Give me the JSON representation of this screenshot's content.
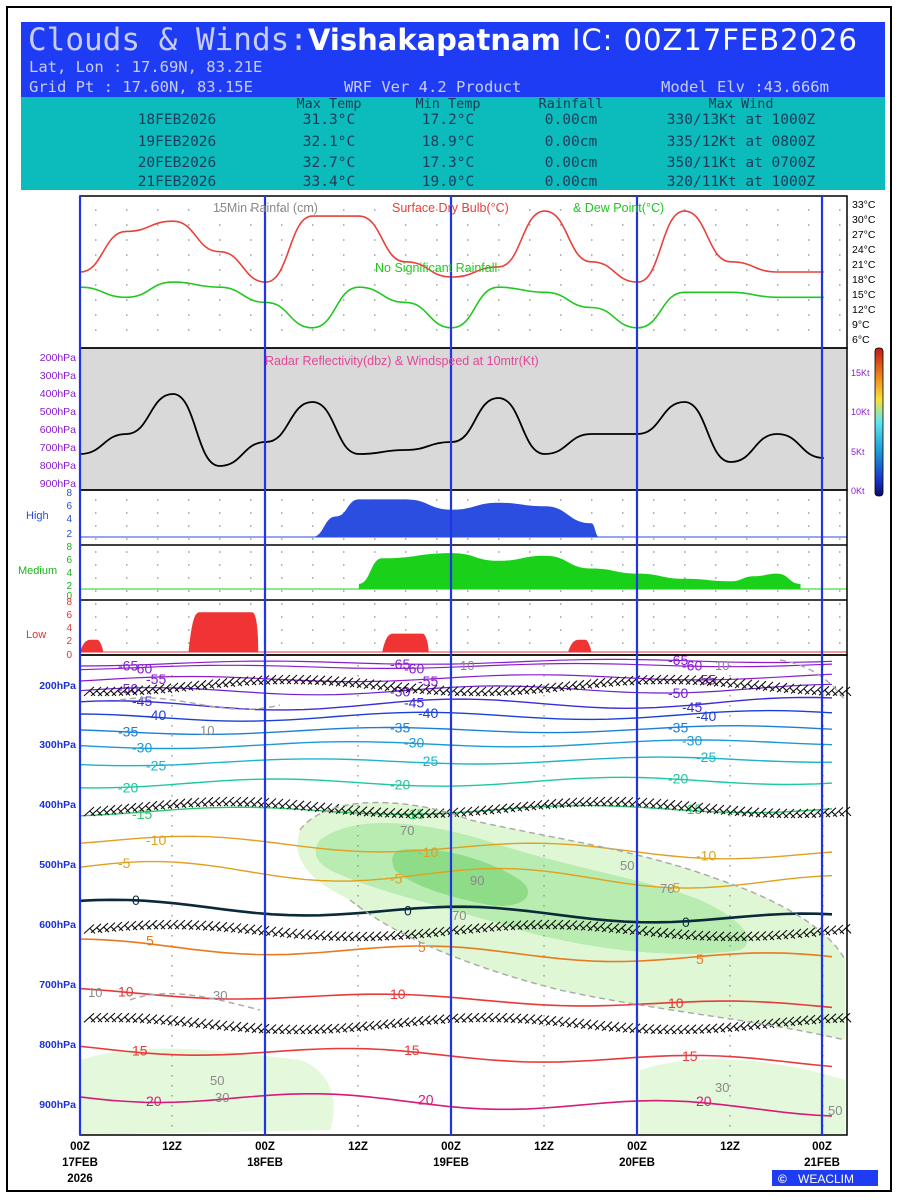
{
  "header": {
    "title_prefix": "Clouds & Winds:",
    "city": "Vishakapatnam",
    "ic": "IC: 00Z17FEB2026",
    "latlon": "Lat, Lon : 17.69N, 83.21E",
    "gridpt": "Grid Pt  : 17.60N, 83.15E",
    "product": "WRF Ver 4.2 Product",
    "elevation": "Model Elv :43.666m"
  },
  "summary": {
    "headers": [
      "Max Temp",
      "Min Temp",
      "Rainfall",
      "Max Wind"
    ],
    "rows": [
      {
        "date": "18FEB2026",
        "max": "31.3°C",
        "min": "17.2°C",
        "rain": "0.00cm",
        "wind": "330/13Kt at 1000Z"
      },
      {
        "date": "19FEB2026",
        "max": "32.1°C",
        "min": "18.9°C",
        "rain": "0.00cm",
        "wind": "335/12Kt at 0800Z"
      },
      {
        "date": "20FEB2026",
        "max": "32.7°C",
        "min": "17.3°C",
        "rain": "0.00cm",
        "wind": "350/11Kt at 0700Z"
      },
      {
        "date": "21FEB2026",
        "max": "33.4°C",
        "min": "19.0°C",
        "rain": "0.00cm",
        "wind": "320/11Kt at 1000Z"
      }
    ]
  },
  "chart_data": [
    {
      "type": "line",
      "title": "15Min Rainfal (cm)   Surface Dry Bulb(°C)  & Dew Point(°C)",
      "legend": [
        "15Min Rainfal (cm)",
        "Surface Dry Bulb(°C)",
        "& Dew Point(°C)"
      ],
      "annotation": "No Significant Rainfall",
      "x_hours": [
        0,
        6,
        12,
        18,
        24,
        30,
        36,
        42,
        48,
        54,
        60,
        66,
        72,
        78,
        84,
        90,
        96
      ],
      "ylim": [
        6,
        33
      ],
      "ytick_labels": [
        "33°C",
        "30°C",
        "27°C",
        "24°C",
        "21°C",
        "18°C",
        "15°C",
        "12°C",
        "9°C",
        "6°C"
      ],
      "series": [
        {
          "name": "Surface Dry Bulb",
          "color": "#e8413a",
          "values": [
            20,
            28,
            30,
            24,
            18,
            31,
            31,
            22,
            19,
            21,
            32,
            22,
            18,
            32,
            22,
            20,
            20
          ]
        },
        {
          "name": "Dew Point",
          "color": "#1fc81f",
          "values": [
            17,
            15,
            18,
            17,
            14,
            9,
            17,
            14,
            9,
            17,
            16,
            13,
            9,
            16,
            16,
            15,
            15
          ]
        }
      ]
    },
    {
      "type": "line",
      "title": "Radar Reflectivity(dbz) & Windspeed at 10mtr(Kt)",
      "left_tick_labels": [
        "200hPa",
        "300hPa",
        "400hPa",
        "500hPa",
        "600hPa",
        "700hPa",
        "800hPa",
        "900hPa"
      ],
      "right_tick_labels": [
        "15Kt",
        "10Kt",
        "5Kt",
        "0Kt"
      ],
      "ylim": [
        0,
        17
      ],
      "x_hours": [
        0,
        6,
        12,
        18,
        24,
        30,
        36,
        42,
        48,
        54,
        60,
        66,
        72,
        78,
        84,
        90,
        96
      ],
      "series": [
        {
          "name": "Windspeed",
          "color": "#000000",
          "values": [
            4.5,
            7,
            12,
            3,
            6,
            11,
            4.5,
            5,
            6,
            11.5,
            4.5,
            7,
            7,
            11,
            3.5,
            7,
            4
          ]
        }
      ]
    },
    {
      "type": "area",
      "title": "High",
      "ylabel": "High",
      "ytick_labels": [
        "8",
        "6",
        "4",
        "2"
      ],
      "ylim": [
        2,
        8
      ],
      "color": "#2b4de0",
      "x_hours": [
        30,
        33,
        36,
        42,
        48,
        54,
        60,
        66,
        67
      ],
      "values": [
        2,
        5,
        7.5,
        7.5,
        6,
        7,
        6.5,
        4,
        2
      ]
    },
    {
      "type": "area",
      "title": "Medium",
      "ylabel": "Medium",
      "ytick_labels": [
        "8",
        "6",
        "4",
        "2",
        "0"
      ],
      "ylim": [
        0,
        8
      ],
      "color": "#1ad11a",
      "x_hours": [
        36,
        39,
        48,
        54,
        60,
        66,
        72,
        78,
        84,
        87,
        90,
        93
      ],
      "values": [
        1,
        6,
        7,
        5.5,
        6.5,
        4,
        3,
        2,
        1.5,
        2.5,
        3,
        1
      ]
    },
    {
      "type": "area",
      "title": "Low",
      "ylabel": "Low",
      "ytick_labels": [
        "8",
        "6",
        "4",
        "2",
        "0"
      ],
      "ylim": [
        0,
        8
      ],
      "color": "#f03434",
      "blocks": [
        {
          "x": [
            0,
            3
          ],
          "value": 2
        },
        {
          "x": [
            14,
            23
          ],
          "value": 6.5
        },
        {
          "x": [
            39,
            45
          ],
          "value": 3
        },
        {
          "x": [
            63,
            66
          ],
          "value": 2
        }
      ]
    },
    {
      "type": "contour",
      "title": "Temperature (°C) & Relative Humidity (%) cross-section with wind barbs",
      "pressure_labels": [
        "200hPa",
        "300hPa",
        "400hPa",
        "500hPa",
        "600hPa",
        "700hPa",
        "800hPa",
        "900hPa"
      ],
      "isotherms": [
        "-65",
        "-60",
        "-55",
        "-50",
        "-45",
        "-40",
        "-35",
        "-30",
        "-25",
        "-20",
        "-15",
        "-10",
        "-5",
        "0",
        "5",
        "10",
        "15",
        "20"
      ],
      "humidity_labels": [
        "10",
        "30",
        "50",
        "70",
        "90"
      ],
      "x_tick_labels": [
        "00Z",
        "12Z",
        "00Z",
        "12Z",
        "00Z",
        "12Z",
        "00Z",
        "12Z",
        "00Z"
      ],
      "x_date_labels": [
        "17FEB",
        "18FEB",
        "19FEB",
        "20FEB",
        "21FEB"
      ],
      "x_year_label": "2026"
    }
  ],
  "footer": {
    "brand": "WEACLIM",
    "logo": "©"
  },
  "colors": {
    "header_bg": "#1f3cf5",
    "summary_bg": "#0cbcbc",
    "day_lines": "#2035e6"
  }
}
